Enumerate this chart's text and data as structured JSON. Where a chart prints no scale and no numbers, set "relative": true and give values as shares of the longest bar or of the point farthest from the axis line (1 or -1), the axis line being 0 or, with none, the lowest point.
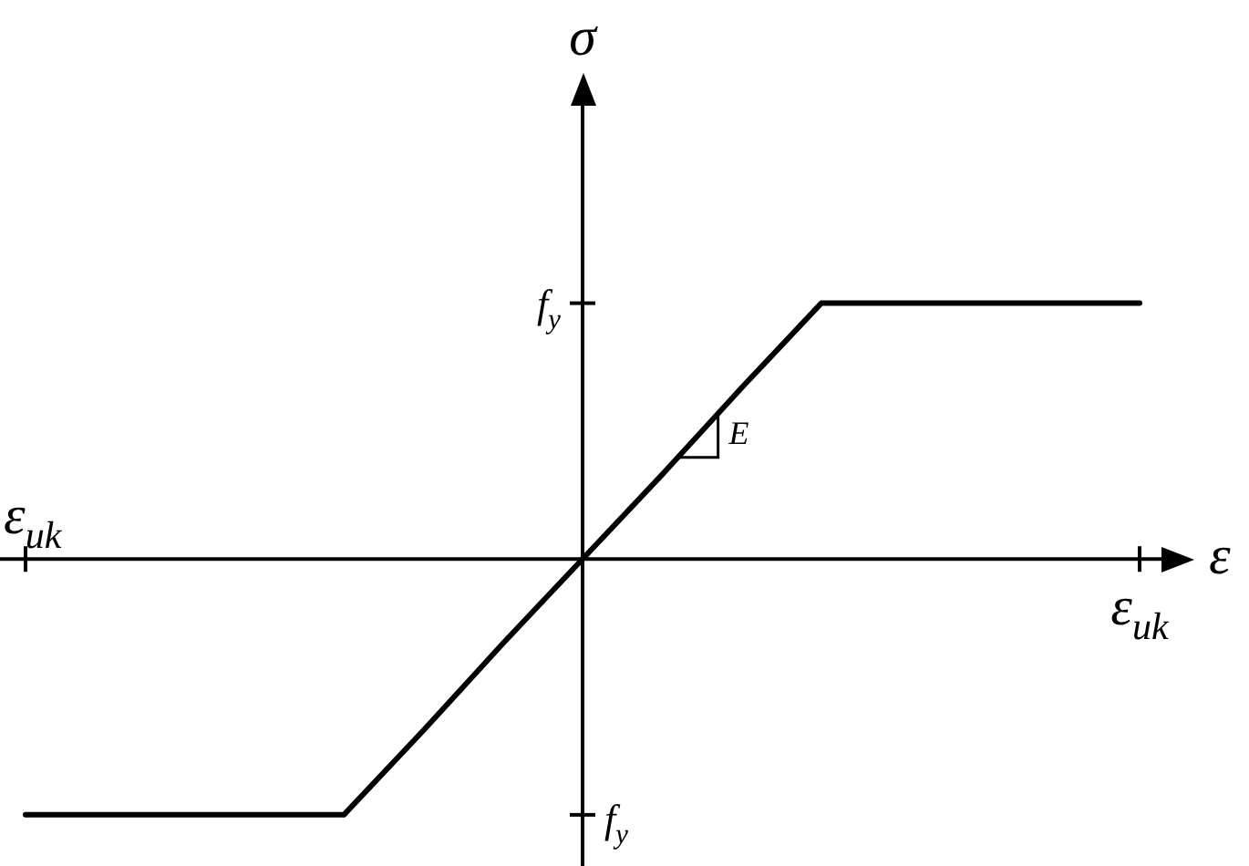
{
  "chart_data": {
    "type": "line",
    "relative": true,
    "xlabel": "ε",
    "ylabel": "σ",
    "categories": [
      null,
      null,
      null,
      null,
      null,
      null,
      null,
      null,
      null,
      null,
      null,
      null,
      null,
      null,
      null
    ],
    "series": [
      {
        "color": "#000000",
        "values": [
          -1,
          -1,
          -1,
          -1,
          -1,
          -0.67,
          -0.33,
          0,
          0.33,
          0.67,
          1,
          1,
          1,
          1,
          1
        ]
      }
    ],
    "annotations": [
      "f$_{y}$",
      "f$_{y}$",
      "ε$_{uk}$",
      "ε$_{uk}$",
      "E"
    ],
    "legend": false,
    "marker": "none",
    "line_style": "solid"
  }
}
